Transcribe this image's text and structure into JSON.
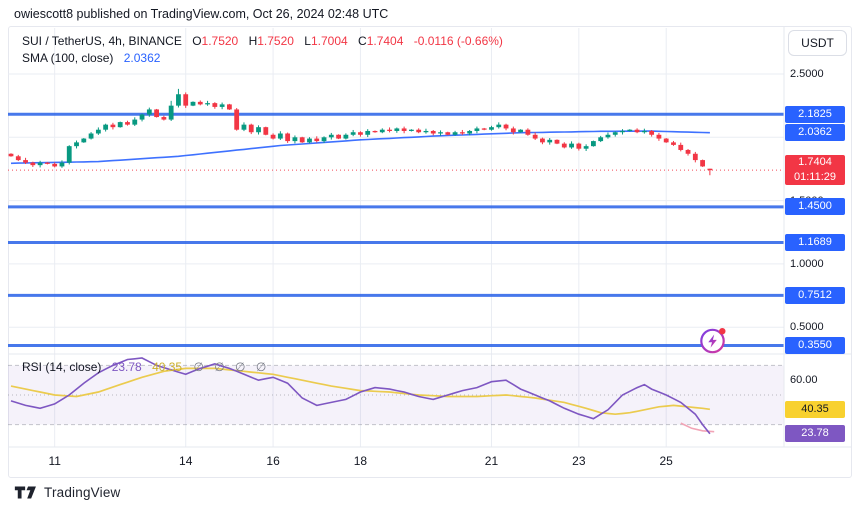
{
  "header": {
    "published": "owiescott8 published on TradingView.com, Oct 26, 2024 02:48 UTC"
  },
  "legend": {
    "symbol": "SUI / TetherUS, 4h, BINANCE",
    "o_label": "O",
    "o_value": "1.7520",
    "h_label": "H",
    "h_value": "1.7520",
    "l_label": "L",
    "l_value": "1.7004",
    "c_label": "C",
    "c_value": "1.7404",
    "change": "-0.0116 (-0.66%)",
    "sma_label": "SMA (100, close)",
    "sma_value": "2.0362"
  },
  "rsi_legend": {
    "label": "RSI (14, close)",
    "value": "23.78",
    "ma_value": "40.35",
    "empty_values": "∅ ∅ ∅ ∅"
  },
  "axis": {
    "currency": "USDT",
    "plain_labels": [
      {
        "price": 2.5,
        "text": "2.5000"
      },
      {
        "price": 1.5,
        "text": "1.5000"
      },
      {
        "price": 1.0,
        "text": "1.0000"
      },
      {
        "price": 0.5,
        "text": "0.5000"
      }
    ],
    "rsi_plain_labels": [
      {
        "value": 60,
        "text": "60.00"
      },
      {
        "value": 20,
        "text": "20.00"
      }
    ],
    "badges": [
      {
        "price": 2.1825,
        "text": "2.1825"
      },
      {
        "price": 2.0362,
        "text": "2.0362"
      },
      {
        "price": 1.45,
        "text": "1.4500"
      },
      {
        "price": 1.1689,
        "text": "1.1689"
      },
      {
        "price": 0.7512,
        "text": "0.7512"
      },
      {
        "price": 0.355,
        "text": "0.3550"
      }
    ],
    "price_badge": {
      "price": 1.7404,
      "line1": "1.7404",
      "line2": "01:11:29"
    },
    "rsi_badges": [
      {
        "value": 40.35,
        "text": "40.35",
        "bg": "#F8D12F",
        "fg": "#131722"
      },
      {
        "value": 23.78,
        "text": "23.78",
        "bg": "#7E57C2",
        "fg": "#FFFFFF"
      }
    ]
  },
  "footer": {
    "brand": "TradingView"
  },
  "chart_data": {
    "type": "candlestick",
    "title": "SUI / TetherUS, 4h, BINANCE",
    "interval": "4h",
    "price_pane": {
      "first_open": 1.87,
      "closes": [
        1.85,
        1.82,
        1.8,
        1.78,
        1.8,
        1.79,
        1.77,
        1.8,
        1.93,
        1.96,
        1.99,
        2.03,
        2.06,
        2.1,
        2.08,
        2.12,
        2.1,
        2.14,
        2.18,
        2.22,
        2.16,
        2.14,
        2.25,
        2.34,
        2.25,
        2.28,
        2.26,
        2.27,
        2.24,
        2.26,
        2.22,
        2.06,
        2.1,
        2.04,
        2.08,
        2.02,
        1.99,
        2.03,
        1.97,
        2.0,
        1.96,
        1.99,
        1.97,
        2.0,
        2.02,
        1.99,
        2.02,
        2.04,
        2.02,
        2.05,
        2.04,
        2.06,
        2.05,
        2.07,
        2.05,
        2.06,
        2.04,
        2.05,
        2.03,
        2.04,
        2.02,
        2.04,
        2.03,
        2.05,
        2.07,
        2.06,
        2.08,
        2.1,
        2.07,
        2.04,
        2.06,
        2.02,
        1.99,
        1.96,
        1.98,
        1.95,
        1.92,
        1.95,
        1.91,
        1.93,
        1.97,
        2.0,
        2.02,
        2.04,
        2.05,
        2.06,
        2.04,
        2.05,
        2.02,
        1.99,
        1.96,
        1.94,
        1.9,
        1.87,
        1.82,
        1.77,
        1.7404
      ],
      "high_boost": {
        "23": 0.035,
        "22": 0.02
      },
      "last_bar": {
        "open": 1.752,
        "high": 1.752,
        "low": 1.7004,
        "close": 1.7404
      },
      "gridline_prices": [
        2.5,
        2.0,
        1.5,
        1.0,
        0.5
      ],
      "level_lines": [
        2.1825,
        1.45,
        1.1689,
        0.7512,
        0.355
      ],
      "current_price": 1.7404,
      "countdown": "01:11:29",
      "sma_period": 100,
      "sma_last": 2.0362,
      "sma_points": [
        [
          0,
          1.795
        ],
        [
          12,
          1.808
        ],
        [
          23,
          1.85
        ],
        [
          37,
          1.935
        ],
        [
          48,
          1.98
        ],
        [
          59,
          2.012
        ],
        [
          70,
          2.036
        ],
        [
          81,
          2.047
        ],
        [
          88,
          2.049
        ],
        [
          96,
          2.0362
        ]
      ]
    },
    "rsi_pane": {
      "period": 14,
      "last": 23.78,
      "ma_last": 40.35,
      "overbought": 70,
      "middle": 50,
      "oversold": 30,
      "points": [
        [
          0,
          46
        ],
        [
          2,
          43
        ],
        [
          4,
          41
        ],
        [
          6,
          44
        ],
        [
          8,
          50
        ],
        [
          10,
          58
        ],
        [
          12,
          65
        ],
        [
          14,
          70
        ],
        [
          16,
          74
        ],
        [
          18,
          75
        ],
        [
          20,
          70
        ],
        [
          22,
          67
        ],
        [
          24,
          64
        ],
        [
          26,
          68
        ],
        [
          28,
          71
        ],
        [
          30,
          68
        ],
        [
          32,
          64
        ],
        [
          34,
          60
        ],
        [
          36,
          62
        ],
        [
          38,
          58
        ],
        [
          40,
          48
        ],
        [
          42,
          43
        ],
        [
          44,
          45
        ],
        [
          46,
          47
        ],
        [
          48,
          52
        ],
        [
          50,
          55
        ],
        [
          52,
          54
        ],
        [
          54,
          52
        ],
        [
          56,
          49
        ],
        [
          58,
          47
        ],
        [
          60,
          50
        ],
        [
          62,
          53
        ],
        [
          64,
          55
        ],
        [
          66,
          59
        ],
        [
          68,
          60
        ],
        [
          70,
          54
        ],
        [
          72,
          50
        ],
        [
          74,
          46
        ],
        [
          76,
          41
        ],
        [
          78,
          37
        ],
        [
          80,
          34
        ],
        [
          82,
          40
        ],
        [
          84,
          50
        ],
        [
          86,
          55
        ],
        [
          87,
          57
        ],
        [
          88,
          54
        ],
        [
          90,
          50
        ],
        [
          92,
          45
        ],
        [
          93,
          41
        ],
        [
          94,
          37
        ],
        [
          95,
          30
        ],
        [
          96,
          23.78
        ]
      ],
      "ma_points": [
        [
          0,
          56
        ],
        [
          3,
          53
        ],
        [
          6,
          50
        ],
        [
          9,
          49
        ],
        [
          12,
          52
        ],
        [
          15,
          57
        ],
        [
          18,
          62
        ],
        [
          21,
          66
        ],
        [
          24,
          68
        ],
        [
          28,
          68
        ],
        [
          32,
          66
        ],
        [
          36,
          64
        ],
        [
          40,
          60
        ],
        [
          44,
          56
        ],
        [
          48,
          53
        ],
        [
          52,
          52
        ],
        [
          56,
          50
        ],
        [
          60,
          49
        ],
        [
          64,
          49
        ],
        [
          68,
          50
        ],
        [
          72,
          48
        ],
        [
          76,
          45
        ],
        [
          79,
          41
        ],
        [
          81,
          38
        ],
        [
          83,
          37
        ],
        [
          85,
          38
        ],
        [
          87,
          40
        ],
        [
          89,
          42
        ],
        [
          91,
          43
        ],
        [
          93,
          42
        ],
        [
          95,
          41
        ],
        [
          96,
          40.35
        ]
      ],
      "tail_points": [
        [
          92,
          31
        ],
        [
          93.5,
          27.5
        ],
        [
          95,
          25.8
        ],
        [
          96.6,
          25.2
        ]
      ]
    },
    "time_gridlines": [
      {
        "bar": 6,
        "label": "11"
      },
      {
        "bar": 24,
        "label": "14"
      },
      {
        "bar": 36,
        "label": "16"
      },
      {
        "bar": 48,
        "label": "18"
      },
      {
        "bar": 66,
        "label": "21"
      },
      {
        "bar": 78,
        "label": "23"
      },
      {
        "bar": 90,
        "label": "25"
      }
    ],
    "colors": {
      "up": "#089981",
      "down": "#F23645",
      "level_line": "#2E66E9",
      "sma": "#2962FF",
      "rsi": "#7E57C2",
      "rsi_ma": "#EBCB4E",
      "rsi_tail": "#F2A4B6",
      "grid": "#EAEDF3",
      "band_fill": "rgba(126,87,194,0.08)",
      "band_line": "#9598A1",
      "price_line": "#F23645",
      "border": "#E6E8EF",
      "text": "#131722",
      "muted": "#787B86",
      "accent_blue": "#2962FF"
    }
  }
}
